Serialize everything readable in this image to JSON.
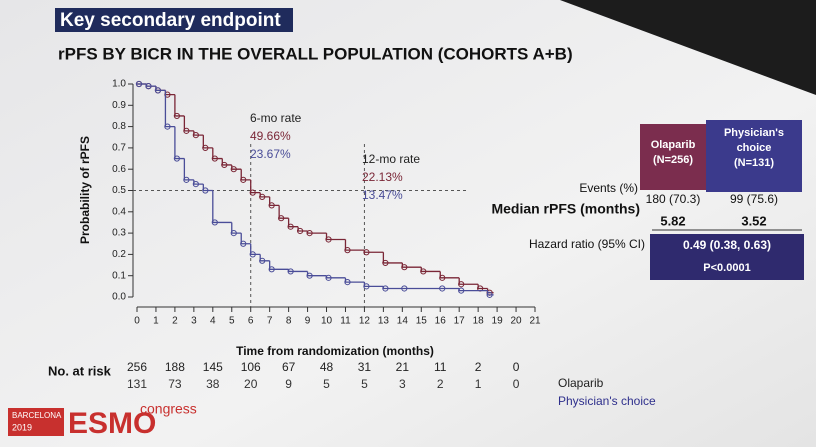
{
  "header": {
    "label": "Key secondary endpoint"
  },
  "chart_data": {
    "type": "line",
    "step": true,
    "title": "rPFS BY BICR IN THE OVERALL POPULATION (COHORTS A+B)",
    "x_label": "Time from randomization (months)",
    "y_label": "Probability of rPFS",
    "xlim": [
      0,
      21
    ],
    "xticks": [
      0,
      1,
      2,
      3,
      4,
      5,
      6,
      7,
      8,
      9,
      10,
      11,
      12,
      13,
      14,
      15,
      16,
      17,
      18,
      19,
      20,
      21
    ],
    "ylim": [
      0,
      1
    ],
    "yticks": [
      {
        "value": 0,
        "label": "0.0"
      },
      0.1,
      0.2,
      0.3,
      0.4,
      0.5,
      0.6,
      0.7,
      0.8,
      0.9,
      {
        "value": 1,
        "label": "1.0"
      }
    ],
    "reference_lines": {
      "x": [
        6,
        12
      ],
      "y": 0.5
    },
    "series": [
      {
        "name": "Olaparib",
        "color": "#7a2636",
        "x": [
          0,
          0.5,
          1,
          1.5,
          2,
          2.5,
          3,
          3.5,
          4,
          4.5,
          5,
          5.5,
          6,
          6.5,
          7,
          7.5,
          8,
          8.5,
          9,
          10,
          11,
          12,
          13,
          14,
          15,
          16,
          17,
          18,
          18.5
        ],
        "values": [
          1,
          0.99,
          0.97,
          0.95,
          0.85,
          0.78,
          0.76,
          0.7,
          0.65,
          0.62,
          0.6,
          0.55,
          0.49,
          0.47,
          0.43,
          0.37,
          0.33,
          0.31,
          0.3,
          0.27,
          0.22,
          0.21,
          0.16,
          0.14,
          0.12,
          0.09,
          0.06,
          0.04,
          0.02
        ]
      },
      {
        "name": "Physician's choice",
        "color": "#4a4d98",
        "x": [
          0,
          0.5,
          1,
          1.5,
          2,
          2.5,
          3,
          3.5,
          4,
          5,
          5.5,
          6,
          6.5,
          7,
          8,
          9,
          10,
          11,
          12,
          13,
          14,
          16,
          17,
          18.5
        ],
        "values": [
          1,
          0.99,
          0.97,
          0.8,
          0.65,
          0.55,
          0.53,
          0.5,
          0.35,
          0.3,
          0.25,
          0.2,
          0.17,
          0.13,
          0.12,
          0.1,
          0.09,
          0.07,
          0.05,
          0.04,
          0.04,
          0.04,
          0.03,
          0.01
        ]
      }
    ],
    "annotations": [
      {
        "title": "6-mo rate",
        "lines": [
          "49.66%",
          "23.67%"
        ]
      },
      {
        "title": "12-mo rate",
        "lines": [
          "22.13%",
          "13.47%"
        ]
      }
    ],
    "at_risk": {
      "label": "No. at risk",
      "rows": [
        [
          256,
          188,
          145,
          106,
          67,
          48,
          31,
          21,
          11,
          2,
          0
        ],
        [
          131,
          73,
          38,
          20,
          9,
          5,
          5,
          3,
          2,
          1,
          0
        ]
      ]
    }
  },
  "table": {
    "columns": [
      [
        "Olaparib",
        "(N=256)"
      ],
      [
        "Physician's",
        "choice",
        "(N=131)"
      ]
    ],
    "rows": [
      [
        "Events (%)",
        "180 (70.3)",
        "99 (75.6)"
      ],
      [
        "Median rPFS (months)",
        "5.82",
        "3.52"
      ],
      [
        "Hazard ratio (95% CI)",
        "0.49 (0.38, 0.63)",
        "P<0.0001"
      ]
    ]
  },
  "logo": {
    "city": "BARCELONA",
    "year": "2019",
    "brand": "ESMO",
    "suffix": "congress"
  }
}
